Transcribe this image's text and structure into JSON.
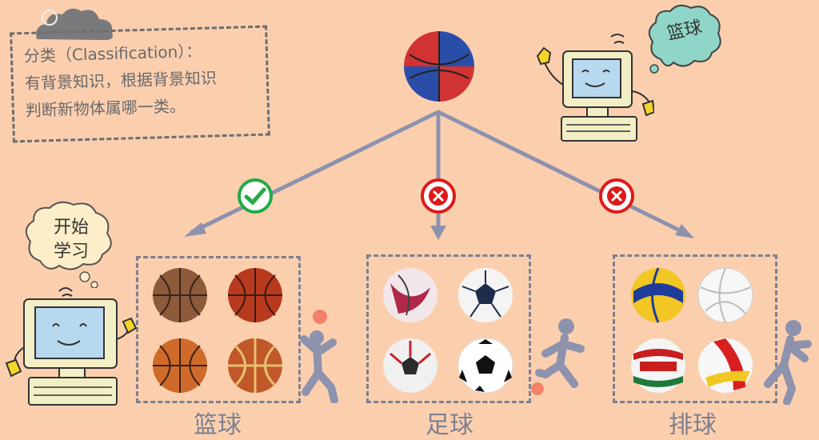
{
  "note": {
    "line1": "分类（Classification）：",
    "line2": "有背景知识，根据背景知识",
    "line3": "判断新物体属哪一类。"
  },
  "top_bubble": "篮球",
  "left_bubble": {
    "line1": "开始",
    "line2": "学习"
  },
  "categories": [
    {
      "label": "篮球",
      "status": "correct"
    },
    {
      "label": "足球",
      "status": "wrong"
    },
    {
      "label": "排球",
      "status": "wrong"
    }
  ],
  "colors": {
    "background": "#fbcfae",
    "arrow": "#8d92ad",
    "check": "#22aa44",
    "cross": "#dd1a1a",
    "figure": "#8d92ad",
    "accent_dot": "#f4826a"
  }
}
